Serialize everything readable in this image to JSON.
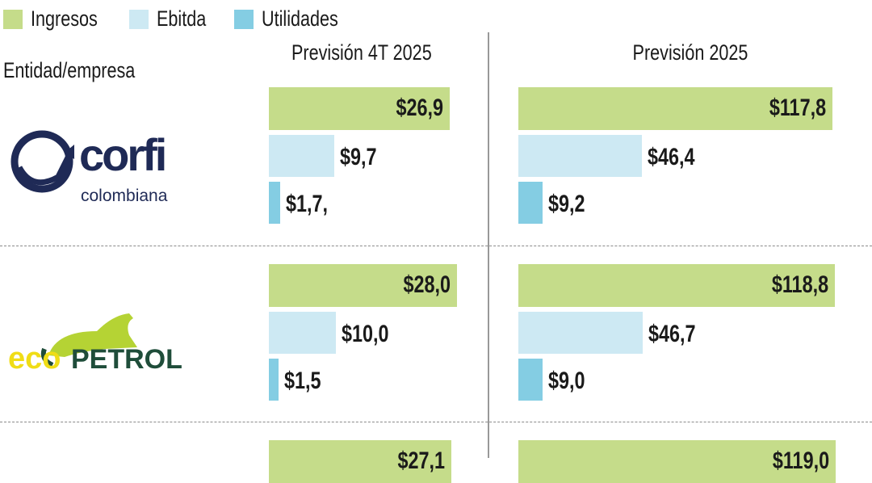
{
  "chart_data": {
    "type": "bar",
    "orientation": "horizontal",
    "legend": [
      {
        "name": "Ingresos",
        "color": "#c5dc8a"
      },
      {
        "name": "Ebitda",
        "color": "#cde9f3"
      },
      {
        "name": "Utilidades",
        "color": "#84cde3"
      }
    ],
    "legend_placement": "top-left",
    "row_header": "Entidad/empresa",
    "panels": [
      {
        "title": "Previsión 4T 2025"
      },
      {
        "title": "Previsión 2025"
      }
    ],
    "rows": [
      {
        "entity": "corfi colombiana",
        "logo": "corficolombiana-logo",
        "panels": [
          [
            {
              "series": "Ingresos",
              "value": 26.9,
              "label": "$26,9"
            },
            {
              "series": "Ebitda",
              "value": 9.7,
              "label": "$9,7"
            },
            {
              "series": "Utilidades",
              "value": 1.7,
              "label": "$1,7,"
            }
          ],
          [
            {
              "series": "Ingresos",
              "value": 117.8,
              "label": "$117,8"
            },
            {
              "series": "Ebitda",
              "value": 46.4,
              "label": "$46,4"
            },
            {
              "series": "Utilidades",
              "value": 9.2,
              "label": "$9,2"
            }
          ]
        ]
      },
      {
        "entity": "ecoPETROL",
        "logo": "ecopetrol-logo",
        "panels": [
          [
            {
              "series": "Ingresos",
              "value": 28.0,
              "label": "$28,0"
            },
            {
              "series": "Ebitda",
              "value": 10.0,
              "label": "$10,0"
            },
            {
              "series": "Utilidades",
              "value": 1.5,
              "label": "$1,5"
            }
          ],
          [
            {
              "series": "Ingresos",
              "value": 118.8,
              "label": "$118,8"
            },
            {
              "series": "Ebitda",
              "value": 46.7,
              "label": "$46,7"
            },
            {
              "series": "Utilidades",
              "value": 9.0,
              "label": "$9,0"
            }
          ]
        ]
      },
      {
        "entity": "",
        "logo": "",
        "panels": [
          [
            {
              "series": "Ingresos",
              "value": 27.1,
              "label": "$27,1"
            }
          ],
          [
            {
              "series": "Ingresos",
              "value": 119.0,
              "label": "$119,0"
            }
          ]
        ]
      }
    ],
    "grid": false
  }
}
